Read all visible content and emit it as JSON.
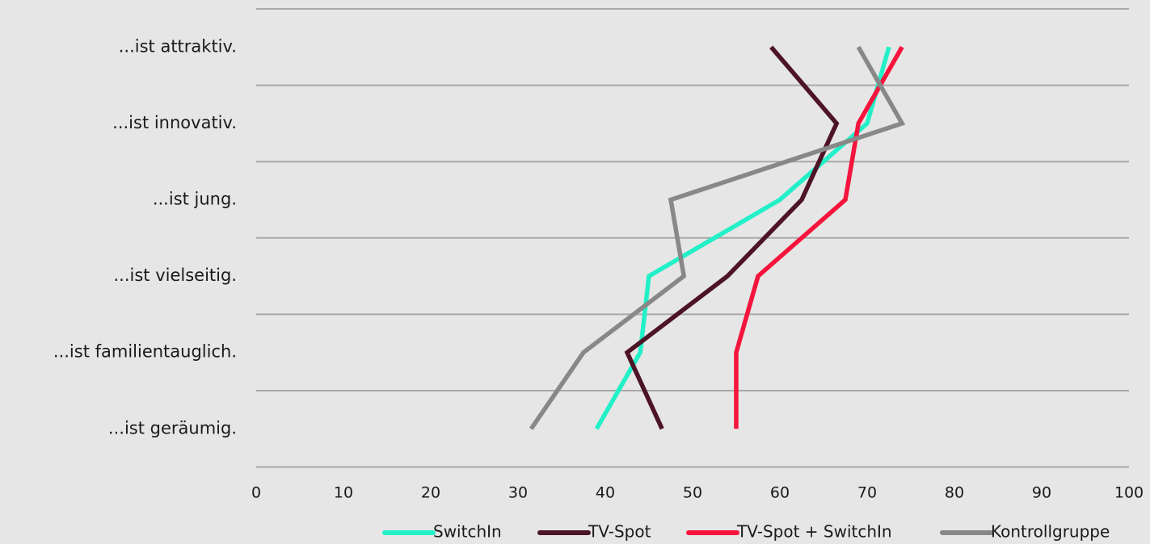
{
  "chart_data": {
    "type": "line",
    "orientation": "horizontal-values",
    "categories": [
      "...ist attraktiv.",
      "...ist innovativ.",
      "...ist jung.",
      "...ist vielseitig.",
      "...ist familientauglich.",
      "...ist geräumig."
    ],
    "xlim": [
      0,
      100
    ],
    "xticks": [
      "0",
      "10",
      "20",
      "30",
      "40",
      "50",
      "60",
      "70",
      "80",
      "90",
      "100"
    ],
    "grid": true,
    "legend_position": "bottom",
    "series": [
      {
        "name": "SwitchIn",
        "color": "#22f0c8",
        "values": [
          72.5,
          70,
          60,
          45,
          44,
          39
        ]
      },
      {
        "name": "TV-Spot",
        "color": "#4d1426",
        "values": [
          59,
          66.5,
          62.5,
          54,
          42.5,
          46.5
        ]
      },
      {
        "name": "TV-Spot + SwitchIn",
        "color": "#f5143c",
        "values": [
          74,
          69,
          67.5,
          57.5,
          55,
          55
        ]
      },
      {
        "name": "Kontrollgruppe",
        "color": "#888888",
        "values": [
          69,
          74,
          47.5,
          49,
          37.5,
          31.5
        ]
      }
    ]
  }
}
